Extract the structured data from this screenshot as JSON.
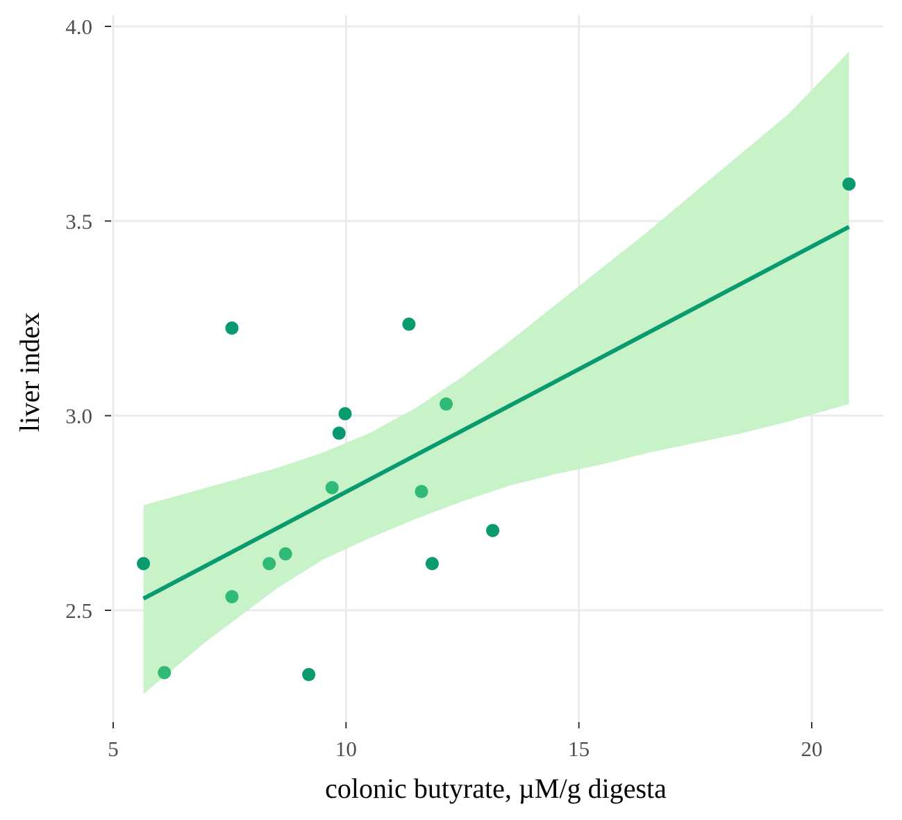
{
  "chart_data": {
    "type": "scatter",
    "title": "",
    "xlabel": "colonic butyrate, µM/g digesta",
    "ylabel": "liver index",
    "xlim": [
      4.95,
      21.6
    ],
    "ylim": [
      2.23,
      4.02
    ],
    "xticks": [
      5,
      10,
      15,
      20
    ],
    "xtick_labels": [
      "5",
      "10",
      "15",
      "20"
    ],
    "yticks": [
      2.5,
      3.0,
      3.5,
      4.0
    ],
    "ytick_labels": [
      "2.5",
      "3.0",
      "3.5",
      "4.0"
    ],
    "grid": true,
    "points": [
      {
        "x": 5.65,
        "y": 2.62,
        "color": "#0a9a6f"
      },
      {
        "x": 6.1,
        "y": 2.34,
        "color": "#2fba78"
      },
      {
        "x": 7.55,
        "y": 3.225,
        "color": "#0a9a6f"
      },
      {
        "x": 7.55,
        "y": 2.535,
        "color": "#2fba78"
      },
      {
        "x": 8.35,
        "y": 2.62,
        "color": "#2fba78"
      },
      {
        "x": 8.7,
        "y": 2.645,
        "color": "#2fba78"
      },
      {
        "x": 9.2,
        "y": 2.335,
        "color": "#0a9a6f"
      },
      {
        "x": 9.7,
        "y": 2.815,
        "color": "#2fba78"
      },
      {
        "x": 9.85,
        "y": 2.955,
        "color": "#0a9a6f"
      },
      {
        "x": 9.98,
        "y": 3.005,
        "color": "#0a9a6f"
      },
      {
        "x": 11.35,
        "y": 3.235,
        "color": "#0a9a6f"
      },
      {
        "x": 11.62,
        "y": 2.805,
        "color": "#2fba78"
      },
      {
        "x": 11.85,
        "y": 2.62,
        "color": "#0a9a6f"
      },
      {
        "x": 12.15,
        "y": 3.03,
        "color": "#2fba78"
      },
      {
        "x": 13.15,
        "y": 2.705,
        "color": "#0a9a6f"
      },
      {
        "x": 20.8,
        "y": 3.595,
        "color": "#0a9a6f"
      }
    ],
    "trend_line": {
      "x": [
        5.65,
        20.8
      ],
      "y": [
        2.53,
        3.485
      ],
      "color": "#0a9a6f"
    },
    "confidence_band": {
      "color": "#c8f2c8",
      "x": [
        5.65,
        7.0,
        8.5,
        9.5,
        10.5,
        11.5,
        12.5,
        13.5,
        14.5,
        15.5,
        16.5,
        17.5,
        18.5,
        19.5,
        20.8
      ],
      "upper": [
        2.77,
        2.815,
        2.865,
        2.905,
        2.955,
        3.02,
        3.1,
        3.19,
        3.285,
        3.38,
        3.475,
        3.575,
        3.675,
        3.775,
        3.935
      ],
      "lower": [
        2.285,
        2.42,
        2.555,
        2.63,
        2.685,
        2.735,
        2.78,
        2.82,
        2.85,
        2.875,
        2.905,
        2.93,
        2.955,
        2.985,
        3.03
      ]
    }
  }
}
